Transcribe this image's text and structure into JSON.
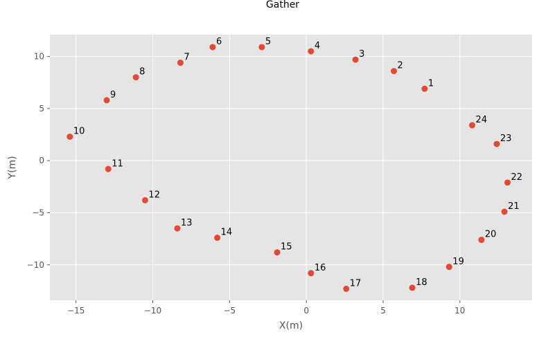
{
  "chart_data": {
    "type": "scatter",
    "title": "Gather",
    "xlabel": "X(m)",
    "ylabel": "Y(m)",
    "xlim": [
      -16.7,
      14.7
    ],
    "ylim": [
      -13.4,
      12.1
    ],
    "xticks": [
      -15,
      -10,
      -5,
      0,
      5,
      10
    ],
    "yticks": [
      -10,
      -5,
      0,
      5,
      10
    ],
    "grid": true,
    "style": {
      "background": "#e5e5e5",
      "grid_color": "#ffffff",
      "marker_color": "#e24a33",
      "text_color": "#555555"
    },
    "points": [
      {
        "label": "1",
        "x": 7.7,
        "y": 6.9
      },
      {
        "label": "2",
        "x": 5.7,
        "y": 8.6
      },
      {
        "label": "3",
        "x": 3.2,
        "y": 9.7
      },
      {
        "label": "4",
        "x": 0.3,
        "y": 10.5
      },
      {
        "label": "5",
        "x": -2.9,
        "y": 10.9
      },
      {
        "label": "6",
        "x": -6.1,
        "y": 10.9
      },
      {
        "label": "7",
        "x": -8.2,
        "y": 9.4
      },
      {
        "label": "8",
        "x": -11.1,
        "y": 8.0
      },
      {
        "label": "9",
        "x": -13.0,
        "y": 5.8
      },
      {
        "label": "10",
        "x": -15.4,
        "y": 2.3
      },
      {
        "label": "11",
        "x": -12.9,
        "y": -0.8
      },
      {
        "label": "12",
        "x": -10.5,
        "y": -3.8
      },
      {
        "label": "13",
        "x": -8.4,
        "y": -6.5
      },
      {
        "label": "14",
        "x": -5.8,
        "y": -7.4
      },
      {
        "label": "15",
        "x": -1.9,
        "y": -8.8
      },
      {
        "label": "16",
        "x": 0.3,
        "y": -10.8
      },
      {
        "label": "17",
        "x": 2.6,
        "y": -12.3
      },
      {
        "label": "18",
        "x": 6.9,
        "y": -12.2
      },
      {
        "label": "19",
        "x": 9.3,
        "y": -10.2
      },
      {
        "label": "20",
        "x": 11.4,
        "y": -7.6
      },
      {
        "label": "21",
        "x": 12.9,
        "y": -4.9
      },
      {
        "label": "22",
        "x": 13.1,
        "y": -2.1
      },
      {
        "label": "23",
        "x": 12.4,
        "y": 1.6
      },
      {
        "label": "24",
        "x": 10.8,
        "y": 3.4
      }
    ]
  }
}
